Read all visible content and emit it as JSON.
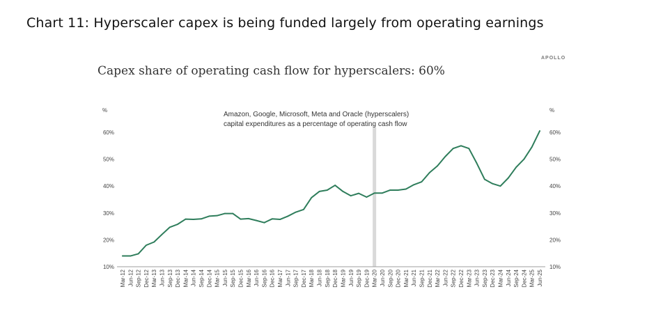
{
  "heading": "Chart 11: Hyperscaler capex is being funded largely from operating earnings",
  "source_mark": "APOLLO",
  "colors": {
    "line": "#2e7d5b",
    "marker": "#d9d9d9",
    "axis": "#9e9e9e",
    "text": "#444444"
  },
  "chart_data": {
    "type": "line",
    "title": "Capex share of operating cash flow for hyperscalers: 60%",
    "annotation": [
      "Amazon, Google, Microsoft, Meta and Oracle (hyperscalers)",
      "capital expenditures as a percentage of operating cash flow"
    ],
    "y_unit_left": "%",
    "y_unit_right": "%",
    "ylim": [
      10,
      60
    ],
    "yticks": [
      "10%",
      "20%",
      "30%",
      "40%",
      "50%",
      "60%"
    ],
    "grid": false,
    "vertical_marker": "Mar-20",
    "categories": [
      "Mar-12",
      "Jun-12",
      "Sep-12",
      "Dec-12",
      "Mar-13",
      "Jun-13",
      "Sep-13",
      "Dec-13",
      "Mar-14",
      "Jun-14",
      "Sep-14",
      "Dec-14",
      "Mar-15",
      "Jun-15",
      "Sep-15",
      "Dec-15",
      "Mar-16",
      "Jun-16",
      "Sep-16",
      "Dec-16",
      "Mar-17",
      "Jun-17",
      "Sep-17",
      "Dec-17",
      "Mar-18",
      "Jun-18",
      "Sep-18",
      "Dec-18",
      "Mar-19",
      "Jun-19",
      "Sep-19",
      "Dec-19",
      "Mar-20",
      "Jun-20",
      "Sep-20",
      "Dec-20",
      "Mar-21",
      "Jun-21",
      "Sep-21",
      "Dec-21",
      "Mar-22",
      "Jun-22",
      "Sep-22",
      "Dec-22",
      "Mar-23",
      "Jun-23",
      "Sep-23",
      "Dec-23",
      "Mar-24",
      "Jun-24",
      "Sep-24",
      "Dec-24",
      "Mar-25",
      "Jun-25"
    ],
    "series": [
      {
        "values": [
          14,
          14,
          14.8,
          18,
          19.2,
          22,
          24.7,
          25.8,
          27.7,
          27.6,
          27.8,
          28.8,
          29,
          29.8,
          29.8,
          27.7,
          27.9,
          27.2,
          26.4,
          27.8,
          27.6,
          28.8,
          30.3,
          31.3,
          35.7,
          38,
          38.5,
          40.3,
          38,
          36.4,
          37.3,
          35.9,
          37.4,
          37.4,
          38.5,
          38.5,
          38.9,
          40.5,
          41.6,
          45,
          47.5,
          51,
          54,
          55,
          54,
          48.5,
          42.5,
          40.9,
          40,
          43,
          47,
          50,
          54.5,
          60.5
        ]
      }
    ]
  }
}
